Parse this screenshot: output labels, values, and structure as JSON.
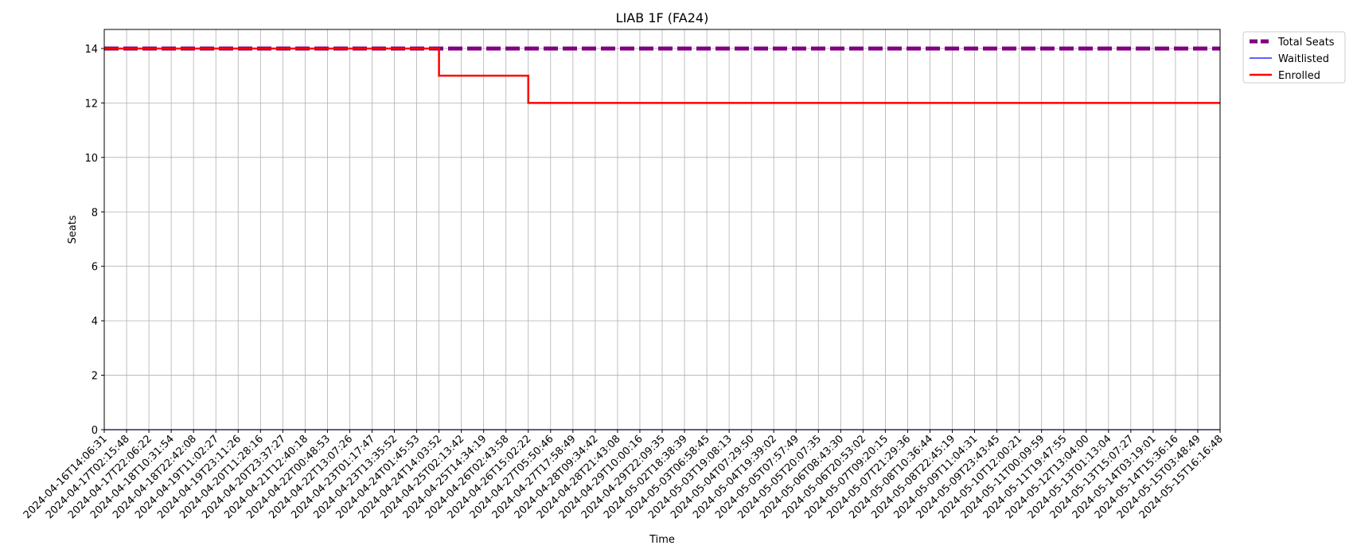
{
  "chart_data": {
    "type": "line",
    "title": "LIAB 1F (FA24)",
    "xlabel": "Time",
    "ylabel": "Seats",
    "ylim": [
      0,
      14.7
    ],
    "yticks": [
      0,
      2,
      4,
      6,
      8,
      10,
      12,
      14
    ],
    "grid": true,
    "legend_position": "outside-top-right",
    "categories": [
      "2024-04-16T14:06:31",
      "2024-04-17T02:15:48",
      "2024-04-17T22:06:22",
      "2024-04-18T10:31:54",
      "2024-04-18T22:42:08",
      "2024-04-19T11:02:27",
      "2024-04-19T23:11:26",
      "2024-04-20T11:28:16",
      "2024-04-20T23:37:27",
      "2024-04-21T12:40:18",
      "2024-04-22T00:48:53",
      "2024-04-22T13:07:26",
      "2024-04-23T01:17:47",
      "2024-04-23T13:35:52",
      "2024-04-24T01:45:53",
      "2024-04-24T14:03:52",
      "2024-04-25T02:13:42",
      "2024-04-25T14:34:19",
      "2024-04-26T02:43:58",
      "2024-04-26T15:02:22",
      "2024-04-27T05:50:46",
      "2024-04-27T17:58:49",
      "2024-04-28T09:34:42",
      "2024-04-28T21:43:08",
      "2024-04-29T10:00:16",
      "2024-04-29T22:09:35",
      "2024-05-02T18:38:39",
      "2024-05-03T06:58:45",
      "2024-05-03T19:08:13",
      "2024-05-04T07:29:50",
      "2024-05-04T19:39:02",
      "2024-05-05T07:57:49",
      "2024-05-05T20:07:35",
      "2024-05-06T08:43:30",
      "2024-05-06T20:53:02",
      "2024-05-07T09:20:15",
      "2024-05-07T21:29:36",
      "2024-05-08T10:36:44",
      "2024-05-08T22:45:19",
      "2024-05-09T11:04:31",
      "2024-05-09T23:43:45",
      "2024-05-10T12:00:21",
      "2024-05-11T00:09:59",
      "2024-05-11T19:47:55",
      "2024-05-12T13:04:00",
      "2024-05-13T01:13:04",
      "2024-05-13T15:07:27",
      "2024-05-14T03:19:01",
      "2024-05-14T15:36:16",
      "2024-05-15T03:48:49",
      "2024-05-15T16:16:48"
    ],
    "series": [
      {
        "name": "Total Seats",
        "color": "#800080",
        "style": "dashed-thick",
        "steps": [
          {
            "from": "2024-04-16T14:06:31",
            "value": 14
          }
        ]
      },
      {
        "name": "Waitlisted",
        "color": "#0000ff",
        "style": "solid-thin",
        "steps": [
          {
            "from": "2024-04-16T14:06:31",
            "value": 0
          }
        ]
      },
      {
        "name": "Enrolled",
        "color": "#ff0000",
        "style": "solid",
        "steps": [
          {
            "from": "2024-04-16T14:06:31",
            "value": 14
          },
          {
            "from": "2024-04-24T14:03:52",
            "value": 13
          },
          {
            "from": "2024-04-26T15:02:22",
            "value": 12
          }
        ]
      }
    ]
  }
}
